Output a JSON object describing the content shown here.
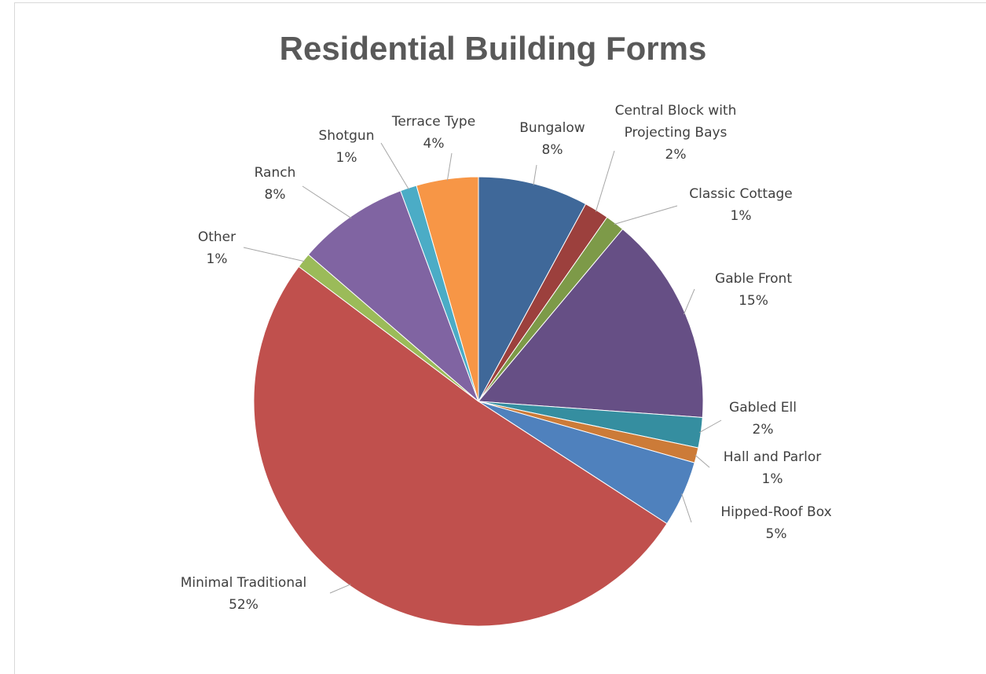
{
  "chart_data": {
    "type": "pie",
    "title": "Residential Building Forms",
    "slices": [
      {
        "name": "Bungalow",
        "value": 8,
        "label": "8%",
        "color": "#3f6899"
      },
      {
        "name": "Central Block with Projecting Bays",
        "name_lines": [
          "Central Block with",
          "Projecting Bays"
        ],
        "value": 1.8,
        "label": "2%",
        "color": "#9c403d"
      },
      {
        "name": "Classic Cottage",
        "value": 1.4,
        "label": "1%",
        "color": "#7d9a48"
      },
      {
        "name": "Gable Front",
        "value": 15.2,
        "label": "15%",
        "color": "#664f85"
      },
      {
        "name": "Gabled Ell",
        "value": 2.2,
        "label": "2%",
        "color": "#358ea0"
      },
      {
        "name": "Hall and Parlor",
        "value": 1.1,
        "label": "1%",
        "color": "#cc7b38"
      },
      {
        "name": "Hipped-Roof Box",
        "value": 4.8,
        "label": "5%",
        "color": "#4f81bd"
      },
      {
        "name": "Minimal Traditional",
        "value": 51.6,
        "label": "52%",
        "color": "#c0504d"
      },
      {
        "name": "Other",
        "value": 1.1,
        "label": "1%",
        "color": "#9bbb59"
      },
      {
        "name": "Ranch",
        "value": 8.1,
        "label": "8%",
        "color": "#8064a2"
      },
      {
        "name": "Shotgun",
        "value": 1.2,
        "label": "1%",
        "color": "#4bacc6"
      },
      {
        "name": "Terrace Type",
        "value": 4.5,
        "label": "4%",
        "color": "#f79646"
      }
    ],
    "legend": "none",
    "data_labels": "outside with leader lines"
  }
}
